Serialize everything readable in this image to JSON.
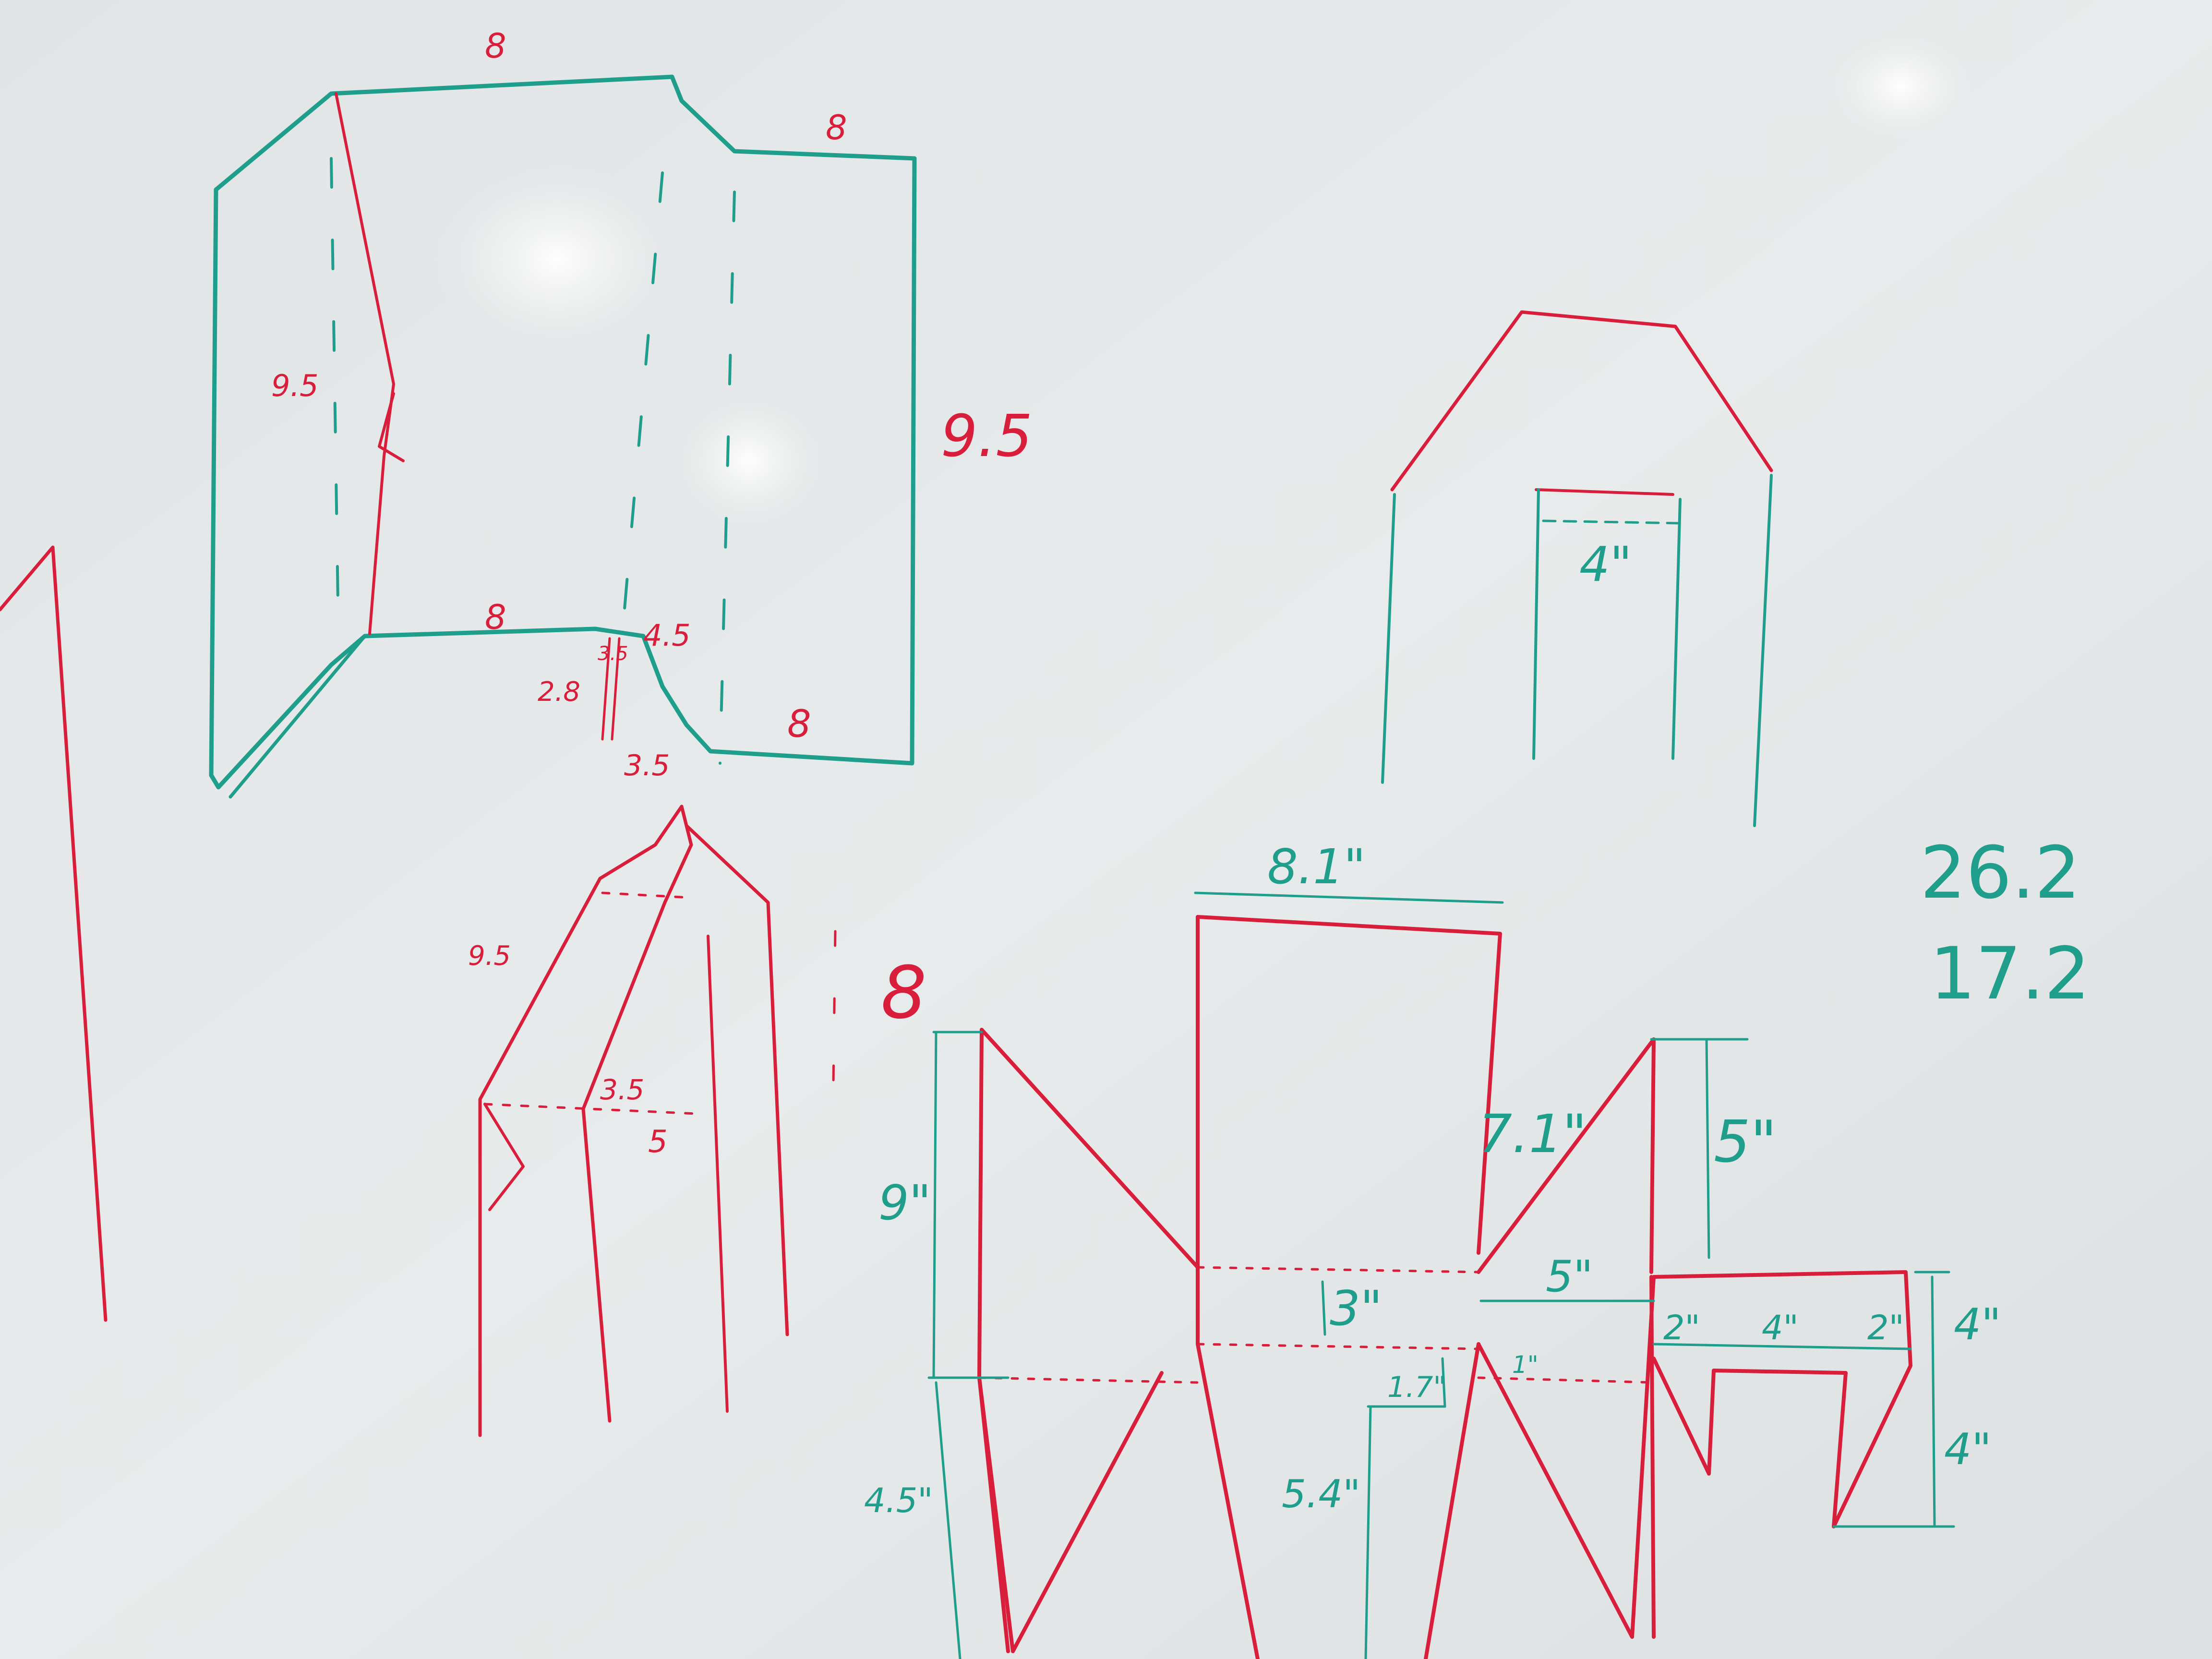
{
  "scene": {
    "description_free": true,
    "colors": {
      "board": "#e6e9ea",
      "red_marker": "#d81e3a",
      "teal_marker": "#1f9e8c"
    }
  },
  "top_left_sketch": {
    "top_edge": "8",
    "right_top_edge": "8",
    "left_height": "9.5",
    "right_height": "9.5",
    "bottom_left_edge": "8",
    "notch_depth": "4.5",
    "notch_small": "3.5",
    "notch_left": "2.8",
    "notch_bottom": "3.5",
    "bottom_right_edge": "8"
  },
  "middle_sketch": {
    "slant_label": "9.5",
    "inner_label": "3.5",
    "base_label": "5",
    "side_label": "8"
  },
  "top_right_sketch": {
    "door_width": "4\""
  },
  "net_drawing": {
    "top_width": "8.1\"",
    "left_height": "9\"",
    "left_lower": "4.5\"",
    "diag": "7.1\"",
    "right_height": "5\"",
    "center_band": "3\"",
    "span": "5\"",
    "small_a": "1.7\"",
    "small_b": "1\"",
    "center_lower": "5.4\"",
    "tab_a": "2\"",
    "tab_b": "4\"",
    "tab_c": "2\"",
    "side_a": "4\"",
    "side_b": "4\""
  },
  "totals": {
    "first": "26.2",
    "second": "17.2"
  }
}
